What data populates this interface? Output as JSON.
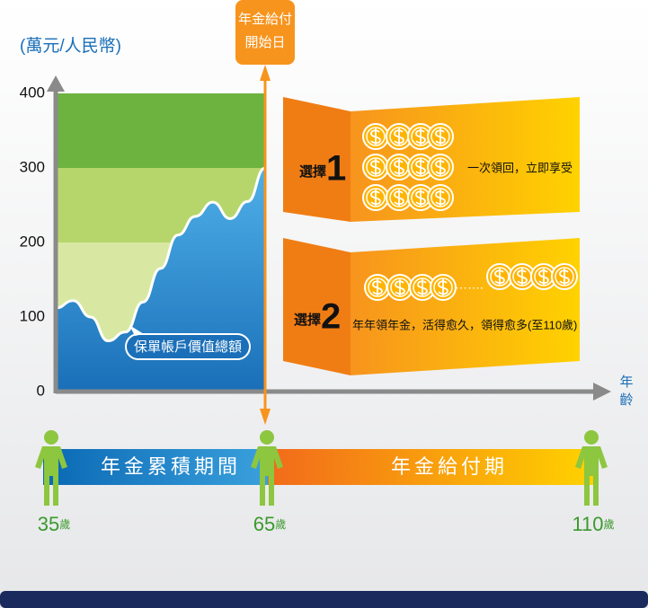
{
  "chart_data": {
    "type": "area",
    "y_label": "(萬元/人民幣)",
    "x_label": [
      "年",
      "齡"
    ],
    "categories": [
      null,
      null,
      null,
      null,
      null,
      null,
      null,
      null,
      null,
      null,
      null,
      null,
      null
    ],
    "values": [
      112,
      122,
      100,
      68,
      80,
      120,
      165,
      210,
      235,
      254,
      232,
      255,
      300
    ],
    "color": "#2f8fd0",
    "area_label": "保單帳戶價值總額",
    "ylim": [
      0,
      400
    ],
    "yticks": [
      0,
      100,
      200,
      300,
      400
    ],
    "grid": false
  },
  "marker": {
    "lines": [
      "年金給付",
      "開始日"
    ]
  },
  "options": [
    {
      "prefix": "選擇",
      "number": "1",
      "text": "一次領回，立即享受"
    },
    {
      "prefix": "選擇",
      "number": "2",
      "text": "年年領年金，活得愈久，領得愈多(至110歲)"
    }
  ],
  "timeline": {
    "accumulation": "年金累積期間",
    "payout": "年金給付期",
    "ages": [
      {
        "age": "35",
        "unit": "歲"
      },
      {
        "age": "65",
        "unit": "歲"
      },
      {
        "age": "110",
        "unit": "歲"
      }
    ]
  }
}
